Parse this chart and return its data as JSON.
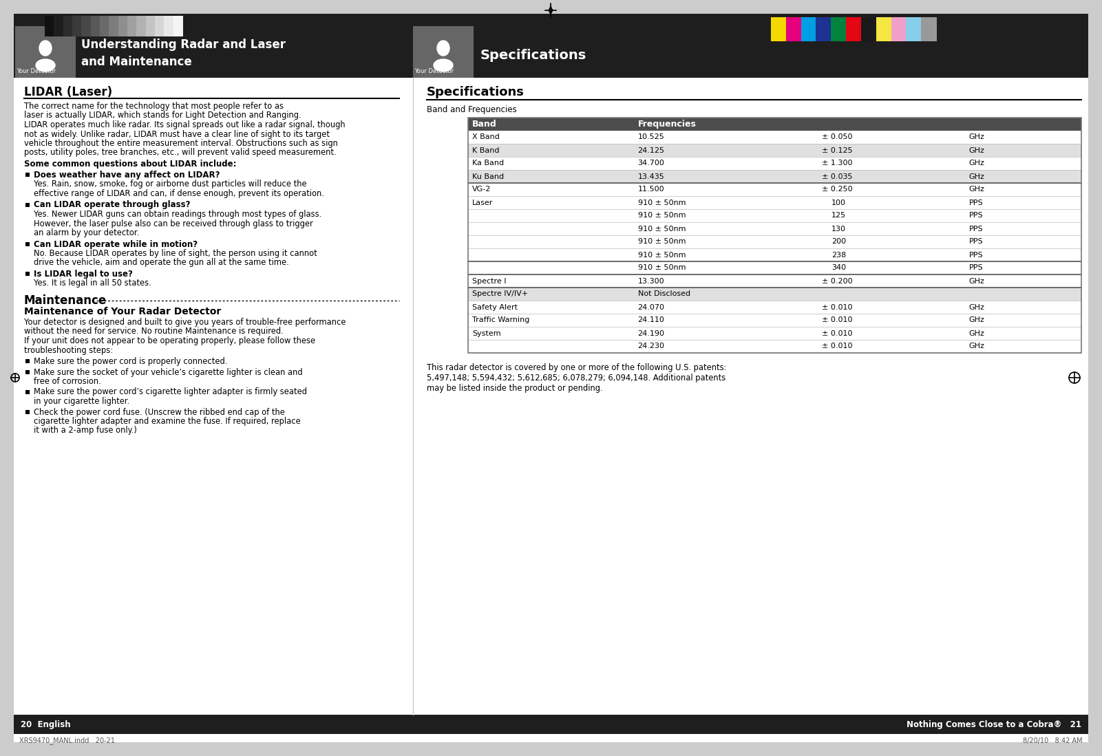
{
  "page_bg": "#ffffff",
  "gray_bar_colors": [
    "#111111",
    "#1e1e1e",
    "#2c2c2c",
    "#3a3a3a",
    "#484848",
    "#595959",
    "#6a6a6a",
    "#7c7c7c",
    "#8e8e8e",
    "#a0a0a0",
    "#b2b2b2",
    "#c4c4c4",
    "#d6d6d6",
    "#e8e8e8",
    "#f5f5f5"
  ],
  "color_bar_colors": [
    "#f5d800",
    "#e5007d",
    "#009fe3",
    "#1d3292",
    "#00833e",
    "#e30613",
    "#1a1a1a",
    "#f5e642",
    "#f0a0c8",
    "#87ceeb",
    "#999999"
  ],
  "left_header_title1": "Understanding Radar and Laser",
  "left_header_title2": "and Maintenance",
  "right_header_title": "Specifications",
  "left_section1_title": "LIDAR (Laser)",
  "left_section1_body": [
    "The correct name for the technology that most people refer to as",
    "laser is actually LIDAR, which stands for Light Detection and Ranging.",
    "LIDAR operates much like radar. Its signal spreads out like a radar signal, though",
    "not as widely. Unlike radar, LIDAR must have a clear line of sight to its target",
    "vehicle throughout the entire measurement interval. Obstructions such as sign",
    "posts, utility poles, tree branches, etc., will prevent valid speed measurement."
  ],
  "left_bullet_title1": "Some common questions about LIDAR include:",
  "left_bullets": [
    {
      "q": "Does weather have any affect on LIDAR?",
      "a": [
        "Yes. Rain, snow, smoke, fog or airborne dust particles will reduce the",
        "effective range of LIDAR and can, if dense enough, prevent its operation."
      ]
    },
    {
      "q": "Can LIDAR operate through glass?",
      "a": [
        "Yes. Newer LIDAR guns can obtain readings through most types of glass.",
        "However, the laser pulse also can be received through glass to trigger",
        "an alarm by your detector."
      ]
    },
    {
      "q": "Can LIDAR operate while in motion?",
      "a": [
        "No. Because LIDAR operates by line of sight, the person using it cannot",
        "drive the vehicle, aim and operate the gun all at the same time."
      ]
    },
    {
      "q": "Is LIDAR legal to use?",
      "a": [
        "Yes. It is legal in all 50 states."
      ]
    }
  ],
  "maintenance_title": "Maintenance",
  "maintenance_subtitle": "Maintenance of Your Radar Detector",
  "maintenance_body": [
    "Your detector is designed and built to give you years of trouble-free performance",
    "without the need for service. No routine Maintenance is required.",
    "If your unit does not appear to be operating properly, please follow these",
    "troubleshooting steps:"
  ],
  "maintenance_bullets": [
    [
      "Make sure the power cord is properly connected."
    ],
    [
      "Make sure the socket of your vehicle’s cigarette lighter is clean and",
      "free of corrosion."
    ],
    [
      "Make sure the power cord’s cigarette lighter adapter is firmly seated",
      "in your cigarette lighter."
    ],
    [
      "Check the power cord fuse. (Unscrew the ribbed end cap of the",
      "cigarette lighter adapter and examine the fuse. If required, replace",
      "it with a 2-amp fuse only.)"
    ]
  ],
  "right_section_title": "Specifications",
  "right_subsection": "Band and Frequencies",
  "table_rows": [
    [
      "X Band",
      "10.525",
      "± 0.050",
      "GHz"
    ],
    [
      "K Band",
      "24.125",
      "± 0.125",
      "GHz"
    ],
    [
      "Ka Band",
      "34.700",
      "± 1.300",
      "GHz"
    ],
    [
      "Ku Band",
      "13.435",
      "± 0.035",
      "GHz"
    ],
    [
      "VG-2",
      "11.500",
      "± 0.250",
      "GHz"
    ],
    [
      "Laser",
      "910 ± 50nm",
      "100",
      "PPS"
    ],
    [
      "",
      "910 ± 50nm",
      "125",
      "PPS"
    ],
    [
      "",
      "910 ± 50nm",
      "130",
      "PPS"
    ],
    [
      "",
      "910 ± 50nm",
      "200",
      "PPS"
    ],
    [
      "",
      "910 ± 50nm",
      "238",
      "PPS"
    ],
    [
      "",
      "910 ± 50nm",
      "340",
      "PPS"
    ],
    [
      "Spectre I",
      "13.300",
      "± 0.200",
      "GHz"
    ],
    [
      "Spectre IV/IV+",
      "Not Disclosed",
      "",
      ""
    ],
    [
      "Safety Alert",
      "24.070",
      "± 0.010",
      "GHz"
    ],
    [
      "Traffic Warning",
      "24.110",
      "± 0.010",
      "GHz"
    ],
    [
      "System",
      "24.190",
      "± 0.010",
      "GHz"
    ],
    [
      "",
      "24.230",
      "± 0.010",
      "GHz"
    ]
  ],
  "patent_text": "This radar detector is covered by one or more of the following U.S. patents:\n5,497,148; 5,594,432; 5,612,685; 6,078,279; 6,094,148. Additional patents\nmay be listed inside the product or pending.",
  "bottom_left_text": "20  English",
  "bottom_right_text": "Nothing Comes Close to a Cobra®   21",
  "footer_left": "XRS9470_MANL.indd   20-21",
  "footer_right": "8/20/10   8:42 AM",
  "table_header_bg": "#4d4d4d",
  "table_alt_bg": "#e0e0e0",
  "table_white_bg": "#ffffff",
  "dark_header_bg": "#1e1e1e",
  "medium_gray_bg": "#666666"
}
